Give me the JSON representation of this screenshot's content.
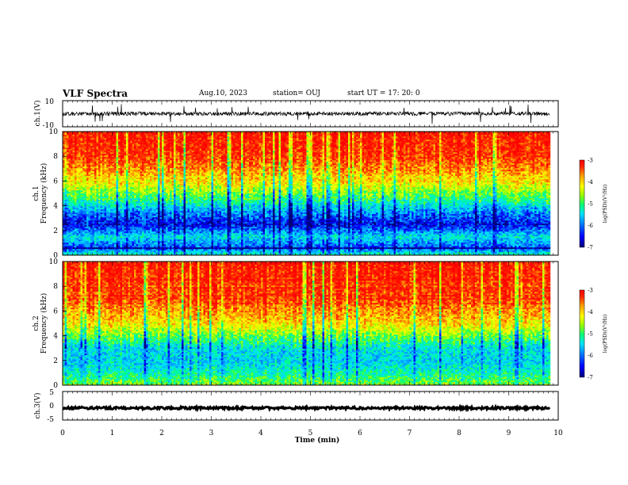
{
  "header": {
    "title": "VLF Spectra",
    "date": "Aug.10, 2023",
    "station": "station= OUJ",
    "start": "start  UT  =   17: 20: 0"
  },
  "colors": {
    "spectrum_scale": [
      "#00007a",
      "#0000ff",
      "#0088ff",
      "#00e0ff",
      "#00ff80",
      "#9cff00",
      "#ffff00",
      "#ffa000",
      "#ff2a00",
      "#ff0000"
    ],
    "waveform": "#000000",
    "axis": "#000000"
  },
  "chart_data": [
    {
      "type": "line",
      "name": "ch1-waveform",
      "ylabel": "ch.1(V)",
      "yticks": [
        "10",
        "-10"
      ],
      "ylim": [
        -10,
        10
      ],
      "xlim": [
        0,
        9.83
      ],
      "baseline": 0,
      "noise_amplitude": 1.5,
      "spike_amplitude": 8
    },
    {
      "type": "heatmap",
      "name": "ch1-spectrogram",
      "ylabel_channel": "ch.1",
      "ylabel": "Frequency  (kHz)",
      "yticks": [
        "0",
        "2",
        "4",
        "6",
        "8",
        "10"
      ],
      "ylim": [
        0,
        10
      ],
      "xlim": [
        0,
        9.83
      ],
      "colorbar": {
        "label": "log(PSD)(V²/Hz)",
        "ticks": [
          "-3",
          "-4",
          "-5",
          "-6",
          "-7"
        ],
        "range": [
          -7,
          -3
        ]
      },
      "value_profile": [
        {
          "f": 0,
          "v": -5.3
        },
        {
          "f": 0.6,
          "v": -6.3
        },
        {
          "f": 1.5,
          "v": -5.6
        },
        {
          "f": 2.5,
          "v": -6.6
        },
        {
          "f": 3.5,
          "v": -6.0
        },
        {
          "f": 4.5,
          "v": -5.2
        },
        {
          "f": 6,
          "v": -4.2
        },
        {
          "f": 8,
          "v": -3.4
        },
        {
          "f": 10,
          "v": -3.2
        }
      ]
    },
    {
      "type": "heatmap",
      "name": "ch2-spectrogram",
      "ylabel_channel": "ch.2",
      "ylabel": "Frequency  (kHz)",
      "yticks": [
        "0",
        "2",
        "4",
        "6",
        "8",
        "10"
      ],
      "ylim": [
        0,
        10
      ],
      "xlim": [
        0,
        9.83
      ],
      "colorbar": {
        "label": "log(PSD)(V²/Hz)",
        "ticks": [
          "-3",
          "-4",
          "-5",
          "-6",
          "-7"
        ],
        "range": [
          -7,
          -3
        ]
      },
      "value_profile": [
        {
          "f": 0,
          "v": -4.8
        },
        {
          "f": 1,
          "v": -5.4
        },
        {
          "f": 2,
          "v": -5.7
        },
        {
          "f": 3,
          "v": -5.6
        },
        {
          "f": 4,
          "v": -4.9
        },
        {
          "f": 5,
          "v": -4.2
        },
        {
          "f": 7,
          "v": -3.5
        },
        {
          "f": 10,
          "v": -3.2
        }
      ]
    },
    {
      "type": "line",
      "name": "ch3-waveform",
      "ylabel": "ch.3(V)",
      "yticks": [
        "5",
        "0",
        "-5"
      ],
      "ylim": [
        -5,
        5
      ],
      "xlim": [
        0,
        9.83
      ],
      "baseline": -0.8,
      "noise_amplitude": 0.4
    }
  ],
  "xaxis": {
    "label": "Time  (min)",
    "ticks": [
      "0",
      "1",
      "2",
      "3",
      "4",
      "5",
      "6",
      "7",
      "8",
      "9",
      "10"
    ],
    "range": [
      0,
      10
    ]
  }
}
